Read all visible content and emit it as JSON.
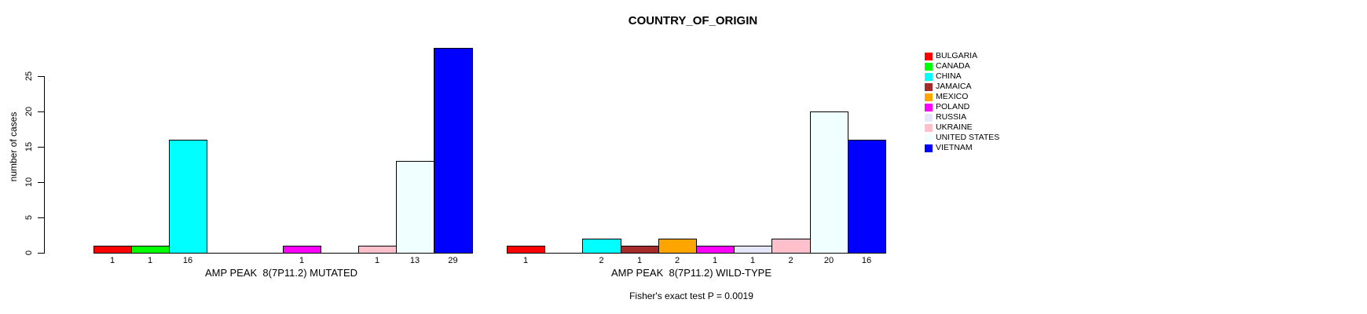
{
  "chart_data": {
    "type": "bar",
    "title": "COUNTRY_OF_ORIGIN",
    "ylabel": "number of cases",
    "ylim": [
      0,
      29
    ],
    "yticks": [
      0,
      5,
      10,
      15,
      20,
      25
    ],
    "grid": false,
    "legend_position": "right",
    "categories": [
      "BULGARIA",
      "CANADA",
      "CHINA",
      "JAMAICA",
      "MEXICO",
      "POLAND",
      "RUSSIA",
      "UKRAINE",
      "UNITED STATES",
      "VIETNAM"
    ],
    "palette": [
      "#FF0000",
      "#00FF00",
      "#00FFFF",
      "#A52A2A",
      "#FFA500",
      "#FF00FF",
      "#E6E6FA",
      "#FFC0CB",
      "#F0FFFF",
      "#0000FF"
    ],
    "panels": [
      {
        "xlabel": "AMP PEAK  8(7P11.2) MUTATED",
        "values": [
          1,
          1,
          16,
          0,
          0,
          1,
          0,
          1,
          13,
          29
        ]
      },
      {
        "xlabel": "AMP PEAK  8(7P11.2) WILD-TYPE",
        "values": [
          1,
          0,
          2,
          1,
          2,
          1,
          1,
          2,
          20,
          16
        ]
      }
    ],
    "bar_value_labels_shown_for_nonzero_only": true,
    "legend": [
      {
        "label": "BULGARIA",
        "color": "#FF0000"
      },
      {
        "label": "CANADA",
        "color": "#00FF00"
      },
      {
        "label": "CHINA",
        "color": "#00FFFF"
      },
      {
        "label": "JAMAICA",
        "color": "#A52A2A"
      },
      {
        "label": "MEXICO",
        "color": "#FFA500"
      },
      {
        "label": "POLAND",
        "color": "#FF00FF"
      },
      {
        "label": "RUSSIA",
        "color": "#E6E6FA"
      },
      {
        "label": "UKRAINE",
        "color": "#FFC0CB"
      },
      {
        "label": "UNITED STATES",
        "color": "#F0FFFF"
      },
      {
        "label": "VIETNAM",
        "color": "#0000FF"
      }
    ],
    "annotation": "Fisher's exact test P = 0.0019"
  }
}
